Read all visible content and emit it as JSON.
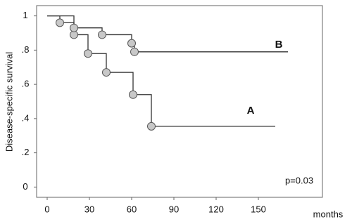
{
  "chart_data": {
    "type": "step",
    "y_label": "Disease-specific survival",
    "x_label": "months",
    "annotation": "p=0.03",
    "xlim": [
      -7.5,
      195.5
    ],
    "xticks": [
      0,
      30,
      60,
      90,
      120,
      150
    ],
    "ylim": [
      -0.06,
      1.06
    ],
    "yticks": [
      0,
      {
        "value": 0.2,
        "label": ".2"
      },
      {
        "value": 0.4,
        "label": ".4"
      },
      {
        "value": 0.6,
        "label": ".6"
      },
      {
        "value": 0.8,
        "label": ".8"
      },
      1
    ],
    "series": [
      {
        "name": "A",
        "color": "#333333",
        "x": [
          0,
          9,
          19,
          29,
          42,
          61,
          74,
          162
        ],
        "values": [
          1,
          0.96,
          0.89,
          0.78,
          0.67,
          0.54,
          0.355,
          0.355
        ]
      },
      {
        "name": "B",
        "color": "#333333",
        "x": [
          0,
          19,
          39,
          60,
          62,
          171
        ],
        "values": [
          1,
          0.93,
          0.89,
          0.84,
          0.79,
          0.79
        ]
      }
    ]
  }
}
